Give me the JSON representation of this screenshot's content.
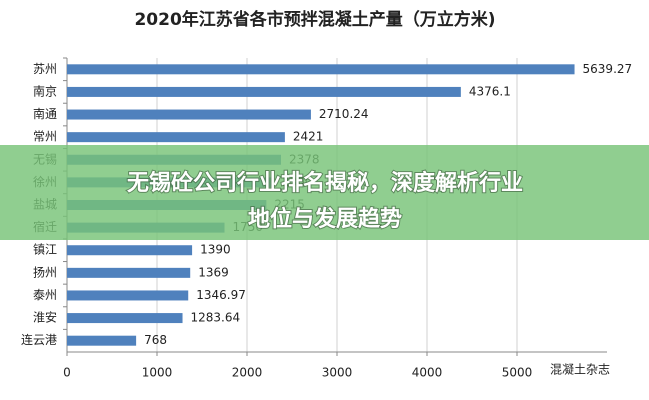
{
  "chart_data": {
    "type": "barh",
    "title": "2020年江苏省各市预拌混凝土产量（万立方米)",
    "categories": [
      "苏州",
      "南京",
      "南通",
      "常州",
      "无锡",
      "徐州",
      "盐城",
      "宿迁",
      "镇江",
      "扬州",
      "泰州",
      "淮安",
      "连云港"
    ],
    "values": [
      5639.27,
      4376.1,
      2710.24,
      2421,
      2378,
      2300,
      2215,
      1750,
      1390,
      1369,
      1346.97,
      1283.64,
      768
    ],
    "color": "#4f81bd",
    "xlim": [
      0,
      6000
    ],
    "xticks": [
      0,
      1000,
      2000,
      3000,
      4000,
      5000
    ],
    "grid": true
  },
  "overlay_title": [
    "无锡砼公司行业排名揭秘，深度解析行业",
    "地位与发展趋势"
  ],
  "watermark": "混凝土杂志"
}
